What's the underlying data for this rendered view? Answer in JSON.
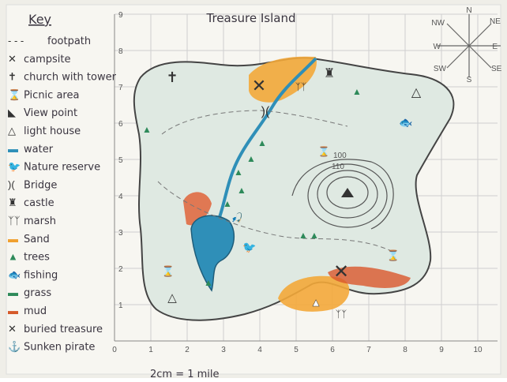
{
  "title": "Treasure Island",
  "key": {
    "heading": "Key",
    "items": [
      {
        "icon": "footpath-icon",
        "label": "footpath"
      },
      {
        "icon": "campsite-icon",
        "label": "campsite"
      },
      {
        "icon": "church-icon",
        "label": "church with tower"
      },
      {
        "icon": "picnic-icon",
        "label": "Picnic area"
      },
      {
        "icon": "viewpoint-icon",
        "label": "View point"
      },
      {
        "icon": "lighthouse-icon",
        "label": "light house"
      },
      {
        "icon": "water-icon",
        "label": "water"
      },
      {
        "icon": "nature-reserve-icon",
        "label": "Nature reserve"
      },
      {
        "icon": "bridge-icon",
        "label": "Bridge"
      },
      {
        "icon": "castle-icon",
        "label": "castle"
      },
      {
        "icon": "marsh-icon",
        "label": "marsh"
      },
      {
        "icon": "sand-icon",
        "label": "Sand"
      },
      {
        "icon": "trees-icon",
        "label": "trees"
      },
      {
        "icon": "fishing-icon",
        "label": "fishing"
      },
      {
        "icon": "grass-icon",
        "label": "grass"
      },
      {
        "icon": "mud-icon",
        "label": "mud"
      },
      {
        "icon": "treasure-icon",
        "label": "buried treasure"
      },
      {
        "icon": "pirate-icon",
        "label": "Sunken pirate"
      }
    ]
  },
  "axes": {
    "x_ticks": [
      "0",
      "1",
      "2",
      "3",
      "4",
      "5",
      "6",
      "7",
      "8",
      "9",
      "10"
    ],
    "y_ticks": [
      "1",
      "2",
      "3",
      "4",
      "5",
      "6",
      "7",
      "8",
      "9"
    ]
  },
  "contours": [
    "100",
    "110"
  ],
  "compass": [
    "N",
    "NE",
    "E",
    "SE",
    "S",
    "SW",
    "W",
    "NW"
  ],
  "scale": "2cm = 1 mile",
  "colors": {
    "water": "#2f8fb8",
    "sand": "#f0a030",
    "mud": "#d55a2a",
    "trees": "#2e8a5a",
    "land": "#dfe9e2"
  }
}
